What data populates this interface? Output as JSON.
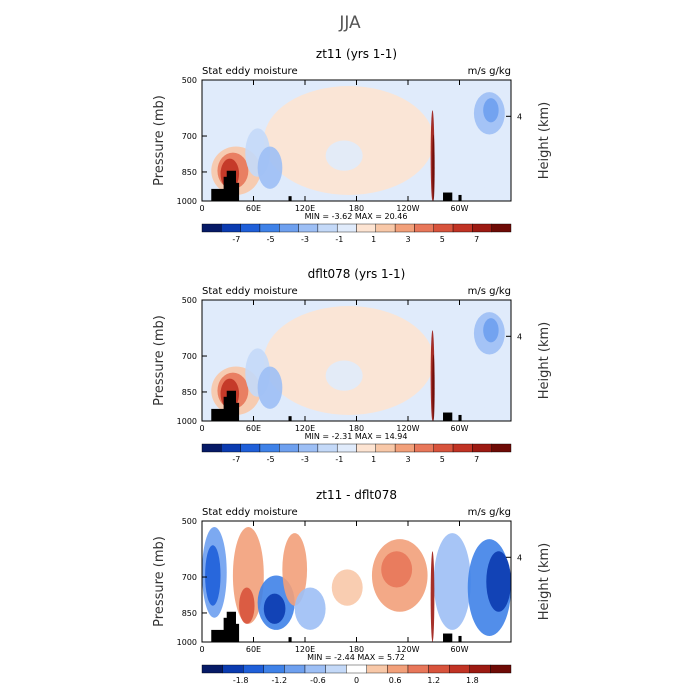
{
  "figure": {
    "super_title": "JJA"
  },
  "chart_data": [
    {
      "type": "heatmap",
      "title": "zt11 (yrs 1-1)",
      "left_label": "Stat eddy moisture",
      "right_label": "m/s g/kg",
      "ylabel": "Pressure (mb)",
      "ylabel_right": "Height (km)",
      "y_ticks": [
        "500",
        "700",
        "850",
        "1000"
      ],
      "y_right_ticks": [
        "4"
      ],
      "x_ticks": [
        "0",
        "60E",
        "120E",
        "180",
        "120W",
        "60W"
      ],
      "stats_text": "MIN = -3.62  MAX = 20.46",
      "min": -3.62,
      "max": 20.46,
      "colorbar_labels": [
        "-7",
        "-5",
        "-3",
        "-1",
        "1",
        "3",
        "5",
        "7"
      ],
      "colorbar_colors": [
        "#061a66",
        "#0b3bb0",
        "#1f5fd9",
        "#3f82e8",
        "#6ea0ef",
        "#9dbff5",
        "#c4d9f8",
        "#e0ebfb",
        "#fde4d2",
        "#f8c8a8",
        "#f2a07a",
        "#e8775a",
        "#d8533c",
        "#c13324",
        "#9c1a12",
        "#6e0b06"
      ]
    },
    {
      "type": "heatmap",
      "title": "dflt078 (yrs 1-1)",
      "left_label": "Stat eddy moisture",
      "right_label": "m/s g/kg",
      "ylabel": "Pressure (mb)",
      "ylabel_right": "Height (km)",
      "y_ticks": [
        "500",
        "700",
        "850",
        "1000"
      ],
      "y_right_ticks": [
        "4"
      ],
      "x_ticks": [
        "0",
        "60E",
        "120E",
        "180",
        "120W",
        "60W"
      ],
      "stats_text": "MIN = -2.31  MAX = 14.94",
      "min": -2.31,
      "max": 14.94,
      "colorbar_labels": [
        "-7",
        "-5",
        "-3",
        "-1",
        "1",
        "3",
        "5",
        "7"
      ],
      "colorbar_colors": [
        "#061a66",
        "#0b3bb0",
        "#1f5fd9",
        "#3f82e8",
        "#6ea0ef",
        "#9dbff5",
        "#c4d9f8",
        "#e0ebfb",
        "#fde4d2",
        "#f8c8a8",
        "#f2a07a",
        "#e8775a",
        "#d8533c",
        "#c13324",
        "#9c1a12",
        "#6e0b06"
      ]
    },
    {
      "type": "heatmap",
      "title": "zt11 - dflt078",
      "left_label": "Stat eddy moisture",
      "right_label": "m/s g/kg",
      "ylabel": "Pressure (mb)",
      "ylabel_right": "Height (km)",
      "y_ticks": [
        "500",
        "700",
        "850",
        "1000"
      ],
      "y_right_ticks": [
        "4"
      ],
      "x_ticks": [
        "0",
        "60E",
        "120E",
        "180",
        "120W",
        "60W"
      ],
      "stats_text": "MIN = -2.44  MAX = 5.72",
      "min": -2.44,
      "max": 5.72,
      "colorbar_labels": [
        "-1.8",
        "-1.2",
        "-0.6",
        "0",
        "0.6",
        "1.2",
        "1.8"
      ],
      "colorbar_colors": [
        "#061a66",
        "#0b3bb0",
        "#1f5fd9",
        "#3f82e8",
        "#6ea0ef",
        "#9dbff5",
        "#c4d9f8",
        "#ffffff",
        "#f8c8a8",
        "#f2a07a",
        "#e8775a",
        "#d8533c",
        "#c13324",
        "#9c1a12",
        "#6e0b06"
      ]
    }
  ]
}
